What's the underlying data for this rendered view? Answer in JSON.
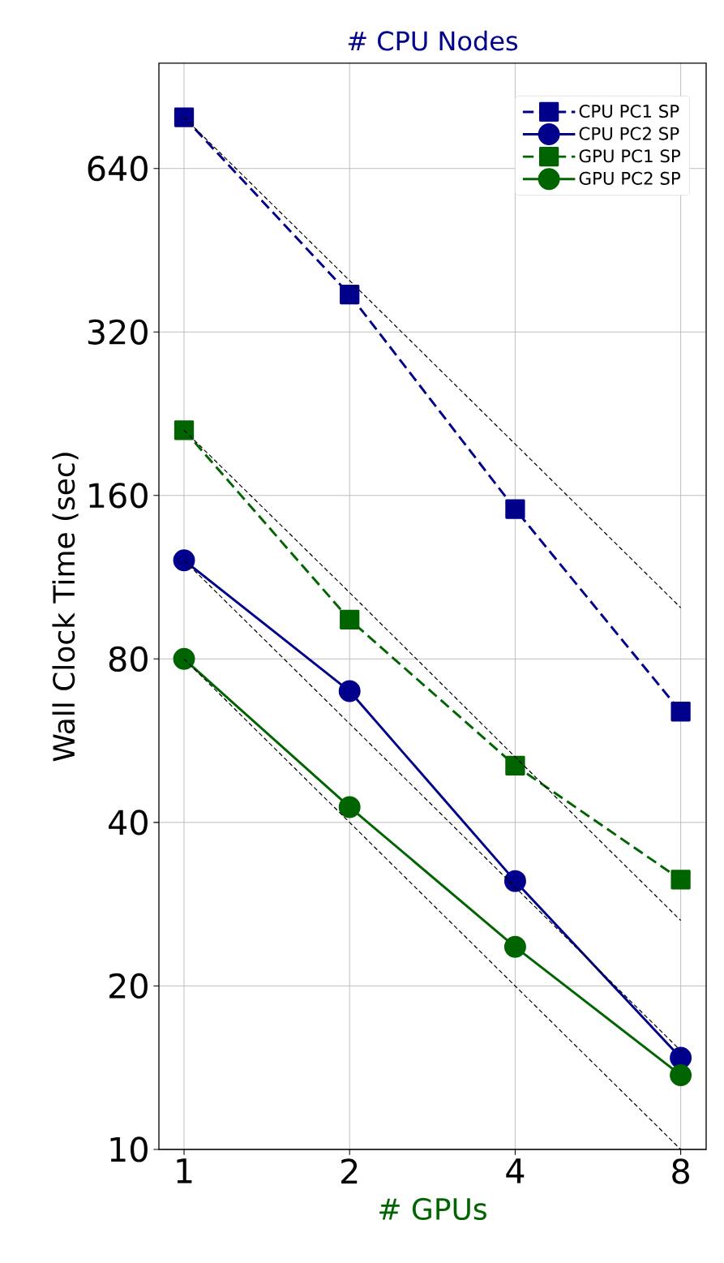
{
  "chart_data": {
    "type": "line",
    "title": "# CPU Nodes",
    "xlabel": "# GPUs",
    "ylabel": "Wall Clock Time (sec)",
    "log": "xy",
    "grid": true,
    "legend": "top right",
    "xlim": [
      0.9,
      8.9
    ],
    "xticks": [
      1,
      2,
      4,
      8
    ],
    "ylim": [
      10,
      1000
    ],
    "yticks": [
      10,
      20,
      40,
      80,
      160,
      320,
      640
    ],
    "x": [
      1,
      2,
      4,
      8
    ],
    "series": [
      {
        "name": "CPU PC1 SP",
        "color": "#00008b",
        "marker": "square",
        "line_style": "dashed",
        "values": [
          795,
          375,
          151,
          64
        ]
      },
      {
        "name": "CPU PC2 SP",
        "color": "#00008b",
        "marker": "circle",
        "line_style": "solid",
        "values": [
          121.5,
          69.8,
          31.2,
          14.75
        ]
      },
      {
        "name": "GPU PC1 SP",
        "color": "#006400",
        "marker": "square",
        "line_style": "dashed",
        "values": [
          211,
          94.5,
          50.9,
          31.4
        ]
      },
      {
        "name": "GPU PC2 SP",
        "color": "#006400",
        "marker": "circle",
        "line_style": "solid",
        "values": [
          80,
          42.7,
          23.6,
          13.7
        ]
      },
      {
        "color": "#000000",
        "marker": "none",
        "line_style": "dashed",
        "values": [
          795,
          398,
          199,
          99.4
        ]
      },
      {
        "color": "#000000",
        "marker": "none",
        "line_style": "dashed",
        "values": [
          121.5,
          60.8,
          30.4,
          15.2
        ]
      },
      {
        "color": "#000000",
        "marker": "none",
        "line_style": "dashed",
        "values": [
          211,
          106,
          52.8,
          26.4
        ]
      },
      {
        "color": "#000000",
        "marker": "none",
        "line_style": "dashed",
        "values": [
          80,
          40,
          20,
          10
        ]
      }
    ]
  }
}
